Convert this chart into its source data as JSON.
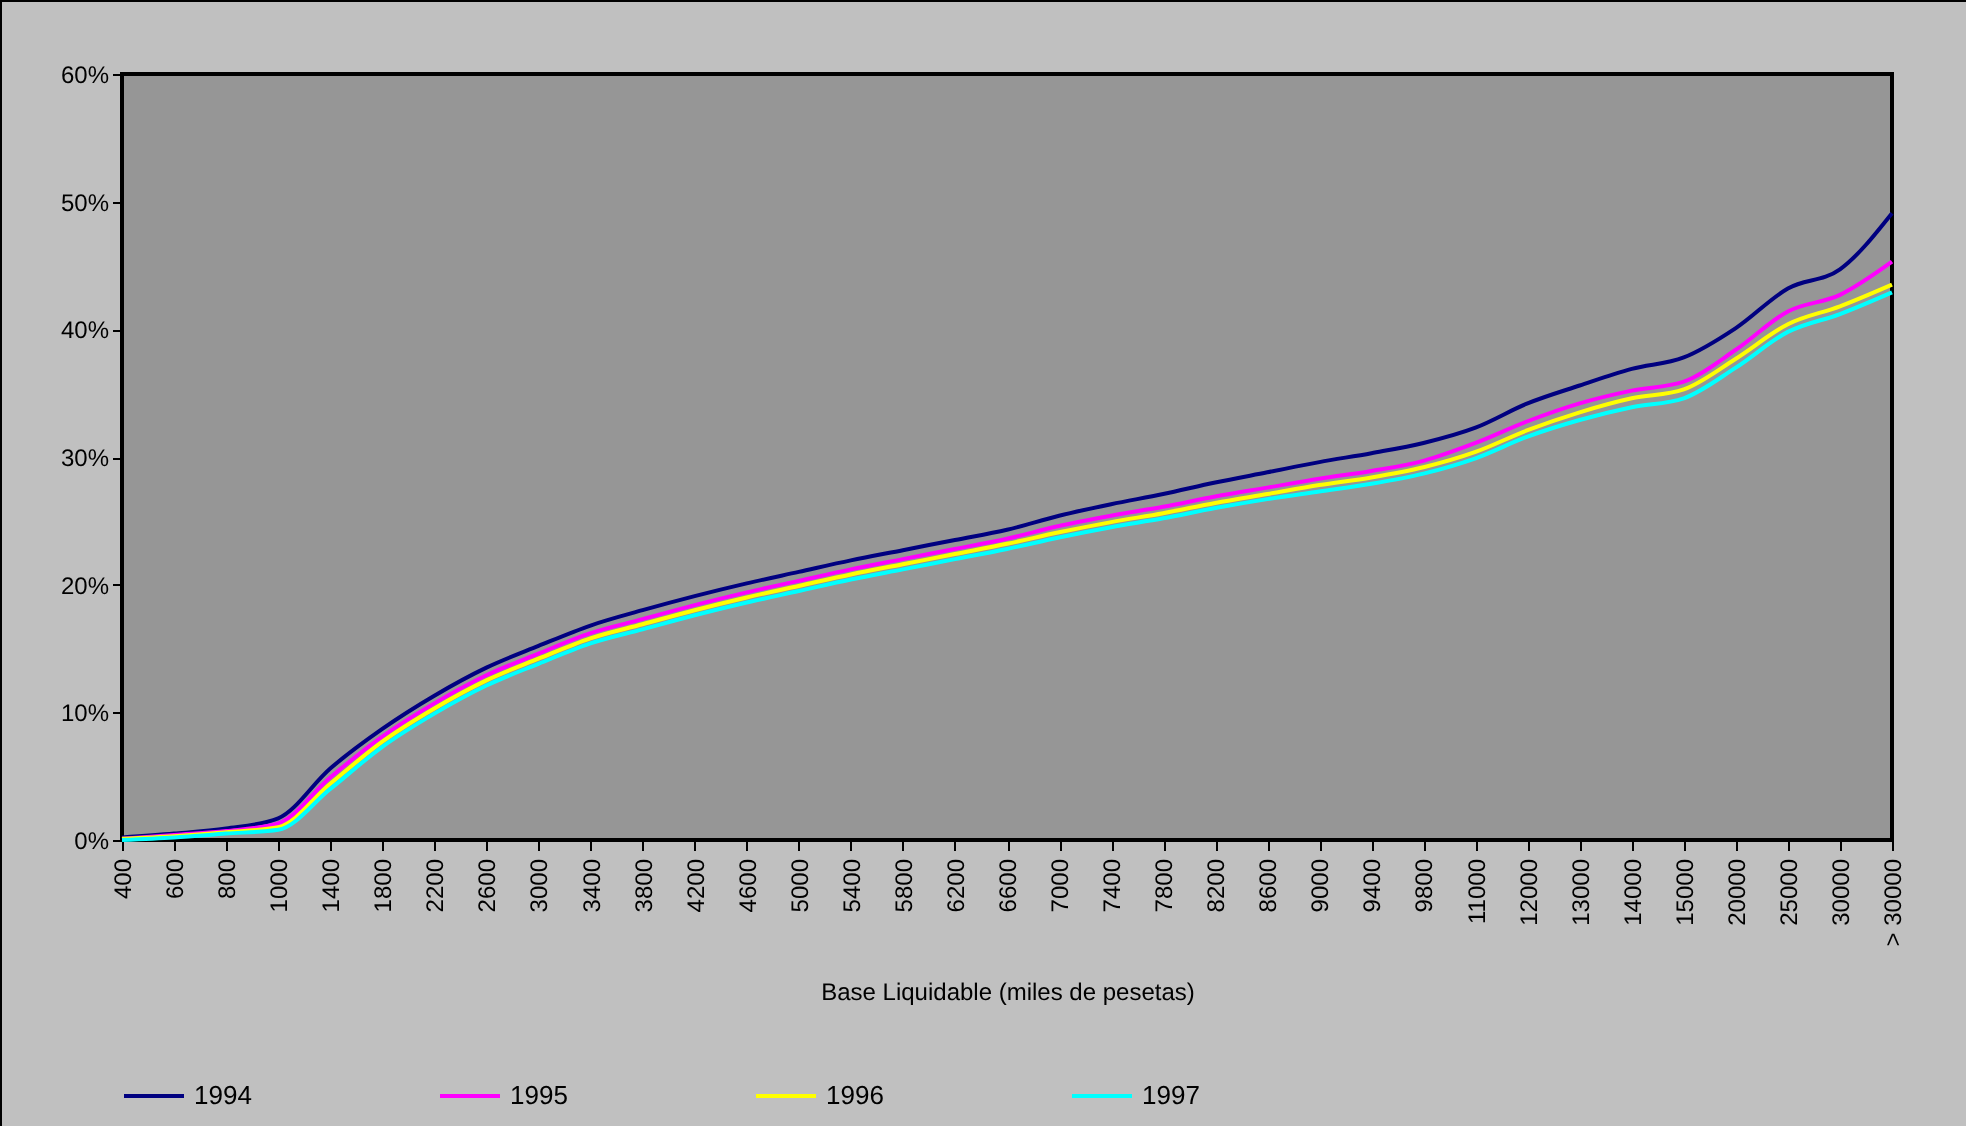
{
  "chart_data": {
    "type": "line",
    "xlabel": "Base Liquidable (miles de pesetas)",
    "legend": "bottom",
    "categories": [
      "400",
      "600",
      "800",
      "1000",
      "1400",
      "1800",
      "2200",
      "2600",
      "3000",
      "3400",
      "3800",
      "4200",
      "4600",
      "5000",
      "5400",
      "5800",
      "6200",
      "6600",
      "7000",
      "7400",
      "7800",
      "8200",
      "8600",
      "9000",
      "9400",
      "9800",
      "11000",
      "12000",
      "13000",
      "14000",
      "15000",
      "20000",
      "25000",
      "30000",
      "> 30000"
    ],
    "ylim": [
      0,
      60
    ],
    "yticks": [
      {
        "value": 0,
        "label": "0%"
      },
      {
        "value": 10,
        "label": "10%"
      },
      {
        "value": 20,
        "label": "20%"
      },
      {
        "value": 30,
        "label": "30%"
      },
      {
        "value": 40,
        "label": "40%"
      },
      {
        "value": 50,
        "label": "50%"
      },
      {
        "value": 60,
        "label": "60%"
      }
    ],
    "series": [
      {
        "name": "1994",
        "color": "#000080",
        "values": [
          0.2,
          0.5,
          0.9,
          1.7,
          5.6,
          8.7,
          11.3,
          13.5,
          15.2,
          16.8,
          18.0,
          19.1,
          20.1,
          21.0,
          21.9,
          22.7,
          23.5,
          24.3,
          25.4,
          26.3,
          27.1,
          28.0,
          28.8,
          29.6,
          30.3,
          31.1,
          32.3,
          34.2,
          35.6,
          36.9,
          37.8,
          40.1,
          43.2,
          44.7,
          49.1
        ]
      },
      {
        "name": "1995",
        "color": "#ff00ff",
        "values": [
          0.1,
          0.4,
          0.7,
          1.3,
          4.9,
          8.1,
          10.7,
          12.9,
          14.6,
          16.2,
          17.3,
          18.4,
          19.4,
          20.3,
          21.2,
          22.0,
          22.8,
          23.6,
          24.6,
          25.4,
          26.1,
          26.9,
          27.6,
          28.3,
          28.9,
          29.7,
          31.1,
          32.8,
          34.2,
          35.2,
          35.9,
          38.4,
          41.4,
          42.7,
          45.3
        ]
      },
      {
        "name": "1996",
        "color": "#ffff00",
        "values": [
          0.1,
          0.3,
          0.6,
          1.0,
          4.4,
          7.7,
          10.3,
          12.5,
          14.2,
          15.8,
          16.9,
          18.0,
          19.0,
          19.9,
          20.8,
          21.6,
          22.4,
          23.2,
          24.1,
          24.9,
          25.6,
          26.4,
          27.1,
          27.8,
          28.4,
          29.2,
          30.4,
          32.1,
          33.5,
          34.6,
          35.3,
          37.7,
          40.4,
          41.8,
          43.5
        ]
      },
      {
        "name": "1997",
        "color": "#00ffff",
        "values": [
          0.0,
          0.2,
          0.5,
          0.8,
          4.0,
          7.3,
          9.9,
          12.1,
          13.8,
          15.4,
          16.5,
          17.6,
          18.6,
          19.5,
          20.4,
          21.2,
          22.0,
          22.8,
          23.7,
          24.5,
          25.2,
          26.0,
          26.7,
          27.3,
          27.9,
          28.7,
          29.9,
          31.6,
          32.9,
          33.9,
          34.6,
          37.0,
          39.8,
          41.2,
          42.9
        ]
      }
    ]
  }
}
